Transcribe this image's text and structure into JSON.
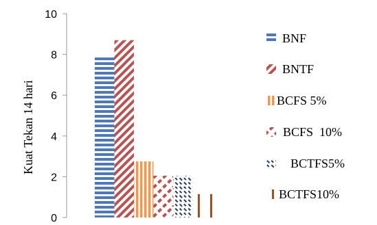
{
  "chart_data": {
    "type": "bar",
    "title": "",
    "xlabel": "",
    "ylabel": "Kuat Tekan 14 hari",
    "ylim": [
      0,
      10
    ],
    "yticks": [
      0,
      2,
      4,
      6,
      8,
      10
    ],
    "grid": false,
    "legend_position": "right",
    "series": [
      {
        "name": "BNF",
        "values": [
          7.85
        ],
        "pattern": "horizontal-lines",
        "color": "#4a78c2"
      },
      {
        "name": "BNTF",
        "values": [
          8.7
        ],
        "pattern": "diagonal-stripes",
        "color": "#c0504d"
      },
      {
        "name": "BCFS 5%",
        "values": [
          2.75
        ],
        "pattern": "vertical-lines",
        "color": "#f79646"
      },
      {
        "name": "BCFS  10%",
        "values": [
          2.05
        ],
        "pattern": "diagonal-dashes",
        "color": "#c0504d"
      },
      {
        "name": "BCTFS5%",
        "values": [
          2.05
        ],
        "pattern": "zigzag-dashes",
        "color": "#1f3864"
      },
      {
        "name": "BCTFS10%",
        "values": [
          1.15
        ],
        "pattern": "sparse-vertical-lines",
        "color": "#a0521e"
      }
    ]
  }
}
